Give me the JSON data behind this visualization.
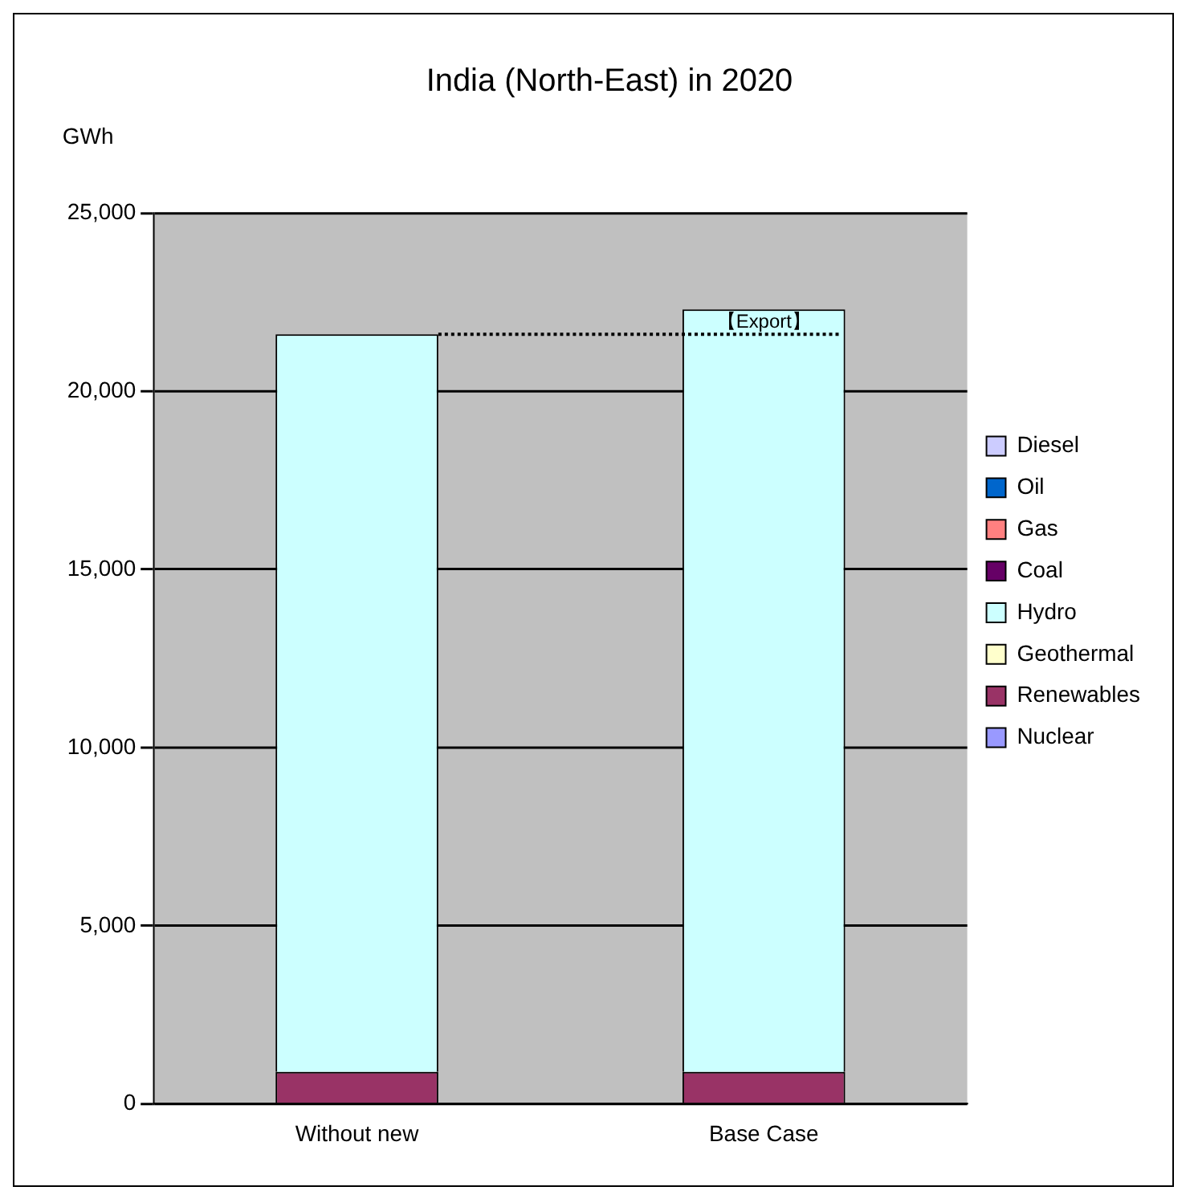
{
  "chart_data": {
    "type": "bar",
    "title": "India (North-East) in 2020",
    "ylabel": "GWh",
    "stacked": true,
    "categories": [
      "Without new",
      "Base Case"
    ],
    "series": [
      {
        "name": "Nuclear",
        "color": "#9999ff",
        "values": [
          0,
          0
        ]
      },
      {
        "name": "Renewables",
        "color": "#993366",
        "values": [
          900,
          900
        ]
      },
      {
        "name": "Geothermal",
        "color": "#ffffcc",
        "values": [
          0,
          0
        ]
      },
      {
        "name": "Hydro",
        "color": "#ccffff",
        "values": [
          20700,
          21400
        ]
      },
      {
        "name": "Coal",
        "color": "#660066",
        "values": [
          0,
          0
        ]
      },
      {
        "name": "Gas",
        "color": "#ff8080",
        "values": [
          0,
          0
        ]
      },
      {
        "name": "Oil",
        "color": "#0066cc",
        "values": [
          0,
          0
        ]
      },
      {
        "name": "Diesel",
        "color": "#ccccff",
        "values": [
          0,
          0
        ]
      }
    ],
    "ylim": [
      0,
      25000
    ],
    "yticks": [
      {
        "value": 0,
        "label": "0"
      },
      {
        "value": 5000,
        "label": "5,000"
      },
      {
        "value": 10000,
        "label": "10,000"
      },
      {
        "value": 15000,
        "label": "15,000"
      },
      {
        "value": 20000,
        "label": "20,000"
      },
      {
        "value": 25000,
        "label": "25,000"
      }
    ],
    "ref_lines": [
      {
        "axis": "y",
        "value": 21600,
        "line_style": "dotted",
        "color": "#000000"
      }
    ],
    "annotations": [
      "【Export】"
    ],
    "grid": "y",
    "legend": "right"
  }
}
